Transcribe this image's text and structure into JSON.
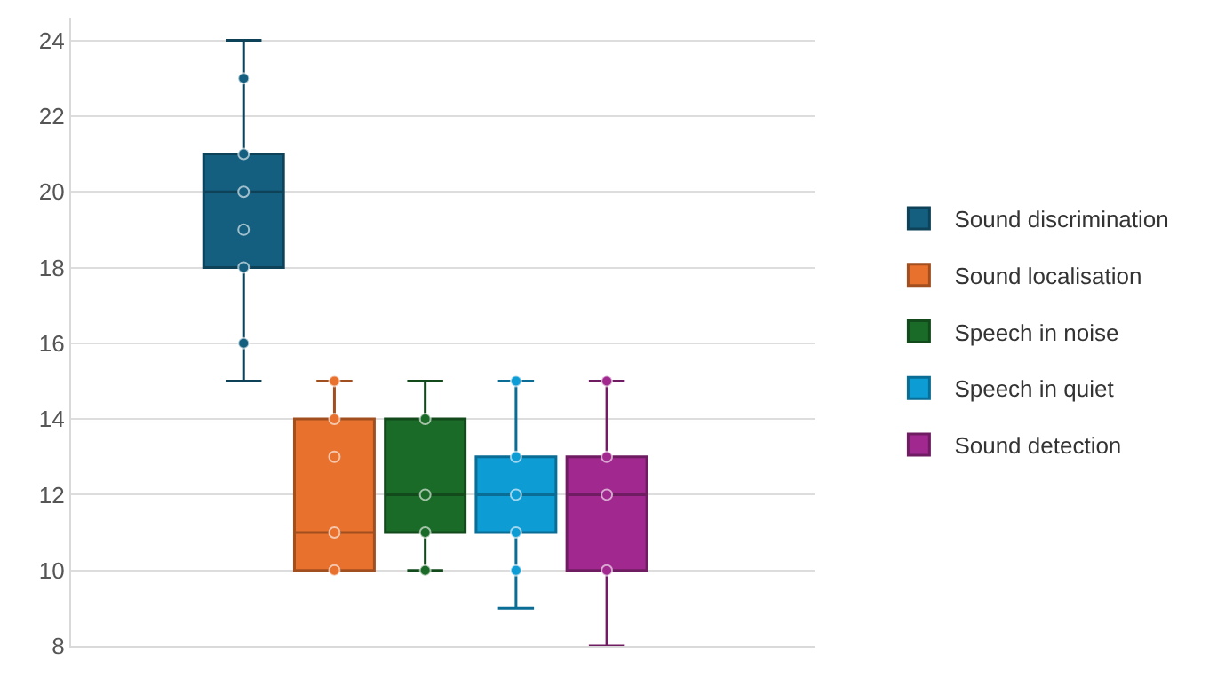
{
  "chart_data": {
    "type": "box",
    "categories": [
      null
    ],
    "ylim": [
      8,
      24.6
    ],
    "yticks": [
      8,
      10,
      12,
      14,
      16,
      18,
      20,
      22,
      24
    ],
    "grid": "y",
    "legend": "right",
    "series": [
      {
        "name": "Sound discrimination",
        "color": "#145f7f",
        "boxes": [
          {
            "low": 15,
            "q1": 18,
            "median": 20,
            "q3": 21,
            "high": 24,
            "outliers": [
              23,
              21,
              20,
              19,
              18,
              16
            ]
          }
        ]
      },
      {
        "name": "Sound localisation",
        "color": "#e8712e",
        "boxes": [
          {
            "low": 10,
            "q1": 10,
            "median": 11,
            "q3": 14,
            "high": 15,
            "outliers": [
              15,
              14,
              13,
              11,
              10
            ]
          }
        ]
      },
      {
        "name": "Speech in noise",
        "color": "#1b6b28",
        "boxes": [
          {
            "low": 10,
            "q1": 11,
            "median": 12,
            "q3": 14,
            "high": 15,
            "outliers": [
              14,
              12,
              11,
              10
            ]
          }
        ]
      },
      {
        "name": "Speech in quiet",
        "color": "#0e9cd5",
        "boxes": [
          {
            "low": 9,
            "q1": 11,
            "median": 12,
            "q3": 13,
            "high": 15,
            "outliers": [
              15,
              13,
              12,
              11,
              10
            ]
          }
        ]
      },
      {
        "name": "Sound detection",
        "color": "#a0288e",
        "boxes": [
          {
            "low": 8,
            "q1": 10,
            "median": 12,
            "q3": 13,
            "high": 15,
            "outliers": [
              15,
              13,
              12,
              10
            ]
          }
        ]
      }
    ]
  }
}
